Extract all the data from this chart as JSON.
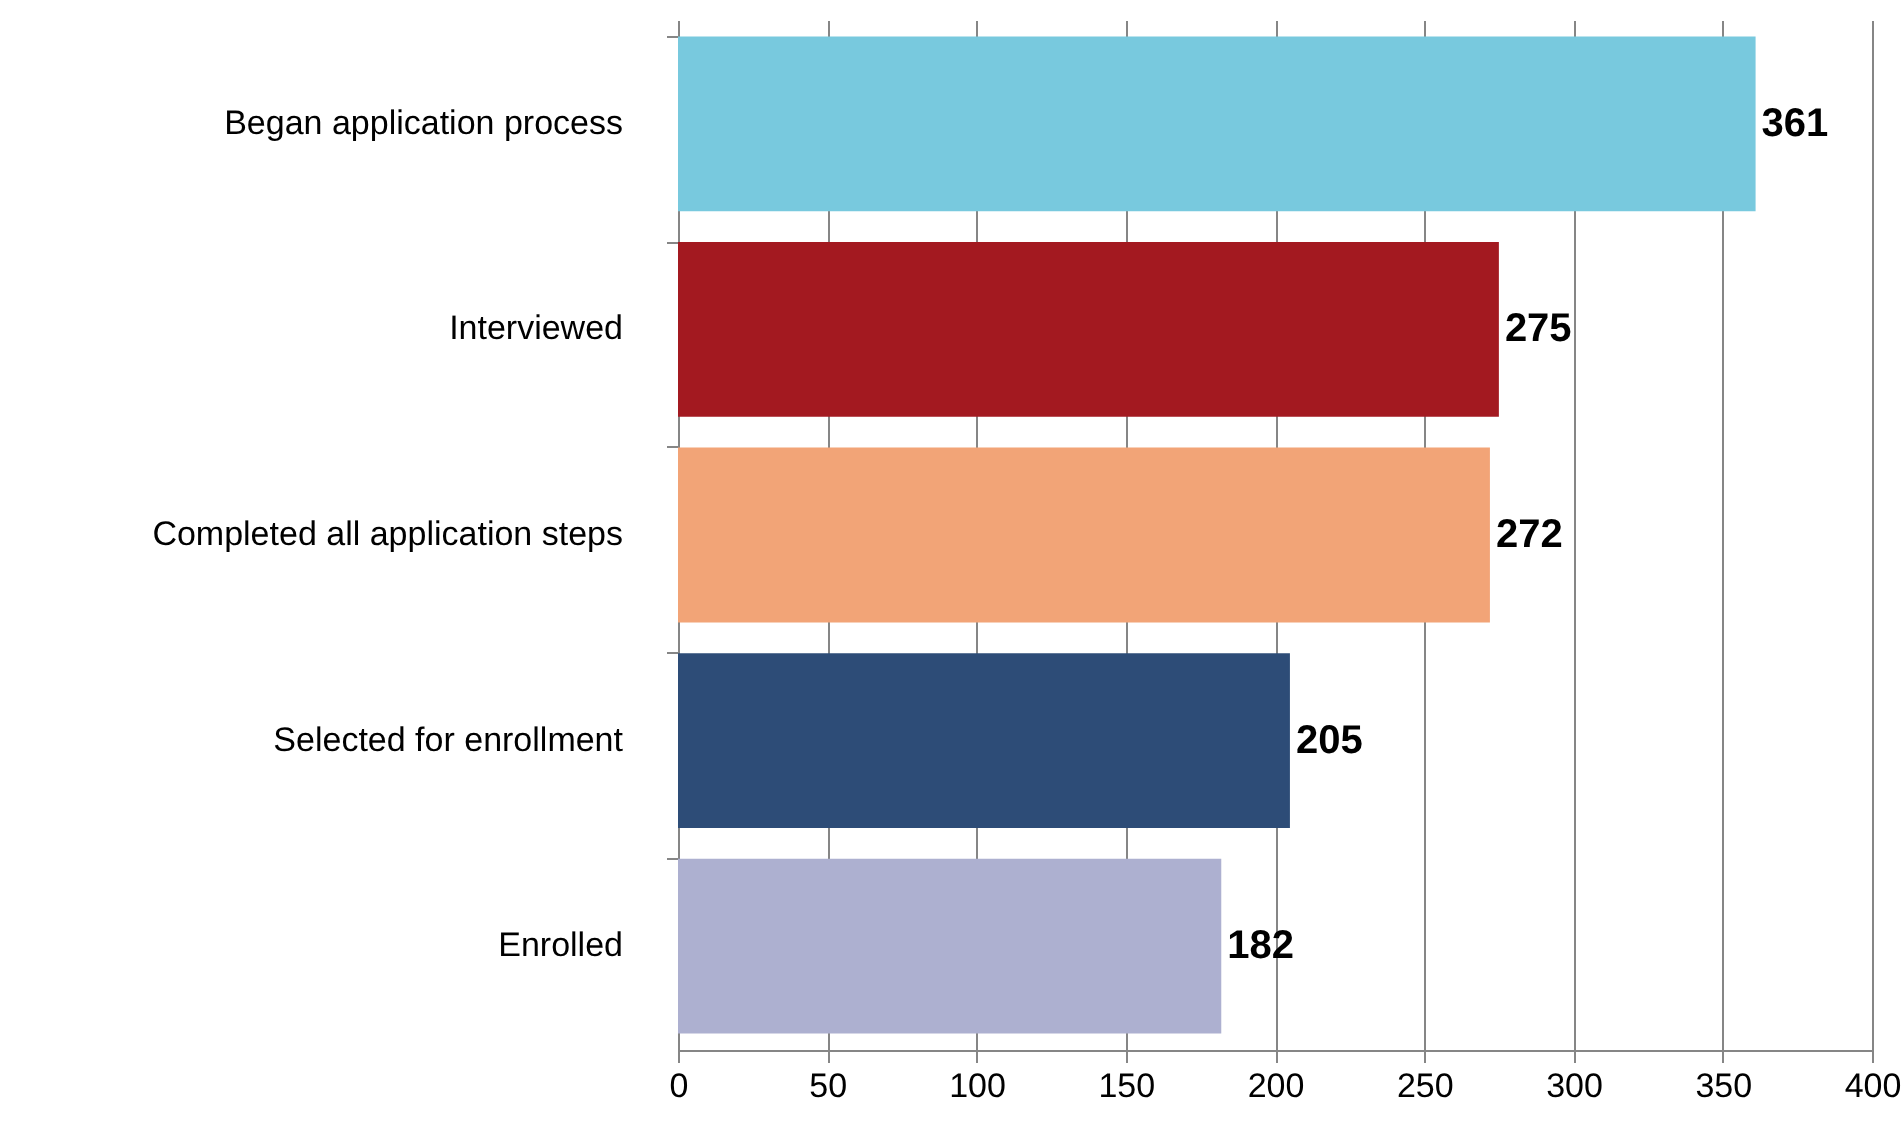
{
  "chart_data": {
    "type": "bar",
    "orientation": "horizontal",
    "categories": [
      "Began application process",
      "Interviewed",
      "Completed all application steps",
      "Selected for enrollment",
      "Enrolled"
    ],
    "values": [
      361,
      275,
      272,
      205,
      182
    ],
    "colors": [
      "#78c9de",
      "#a31920",
      "#f2a477",
      "#2d4c77",
      "#adb0d0"
    ],
    "xlim": [
      0,
      400
    ],
    "xticks": [
      0,
      50,
      100,
      150,
      200,
      250,
      300,
      350,
      400
    ],
    "grid": "x",
    "data_labels": true
  }
}
